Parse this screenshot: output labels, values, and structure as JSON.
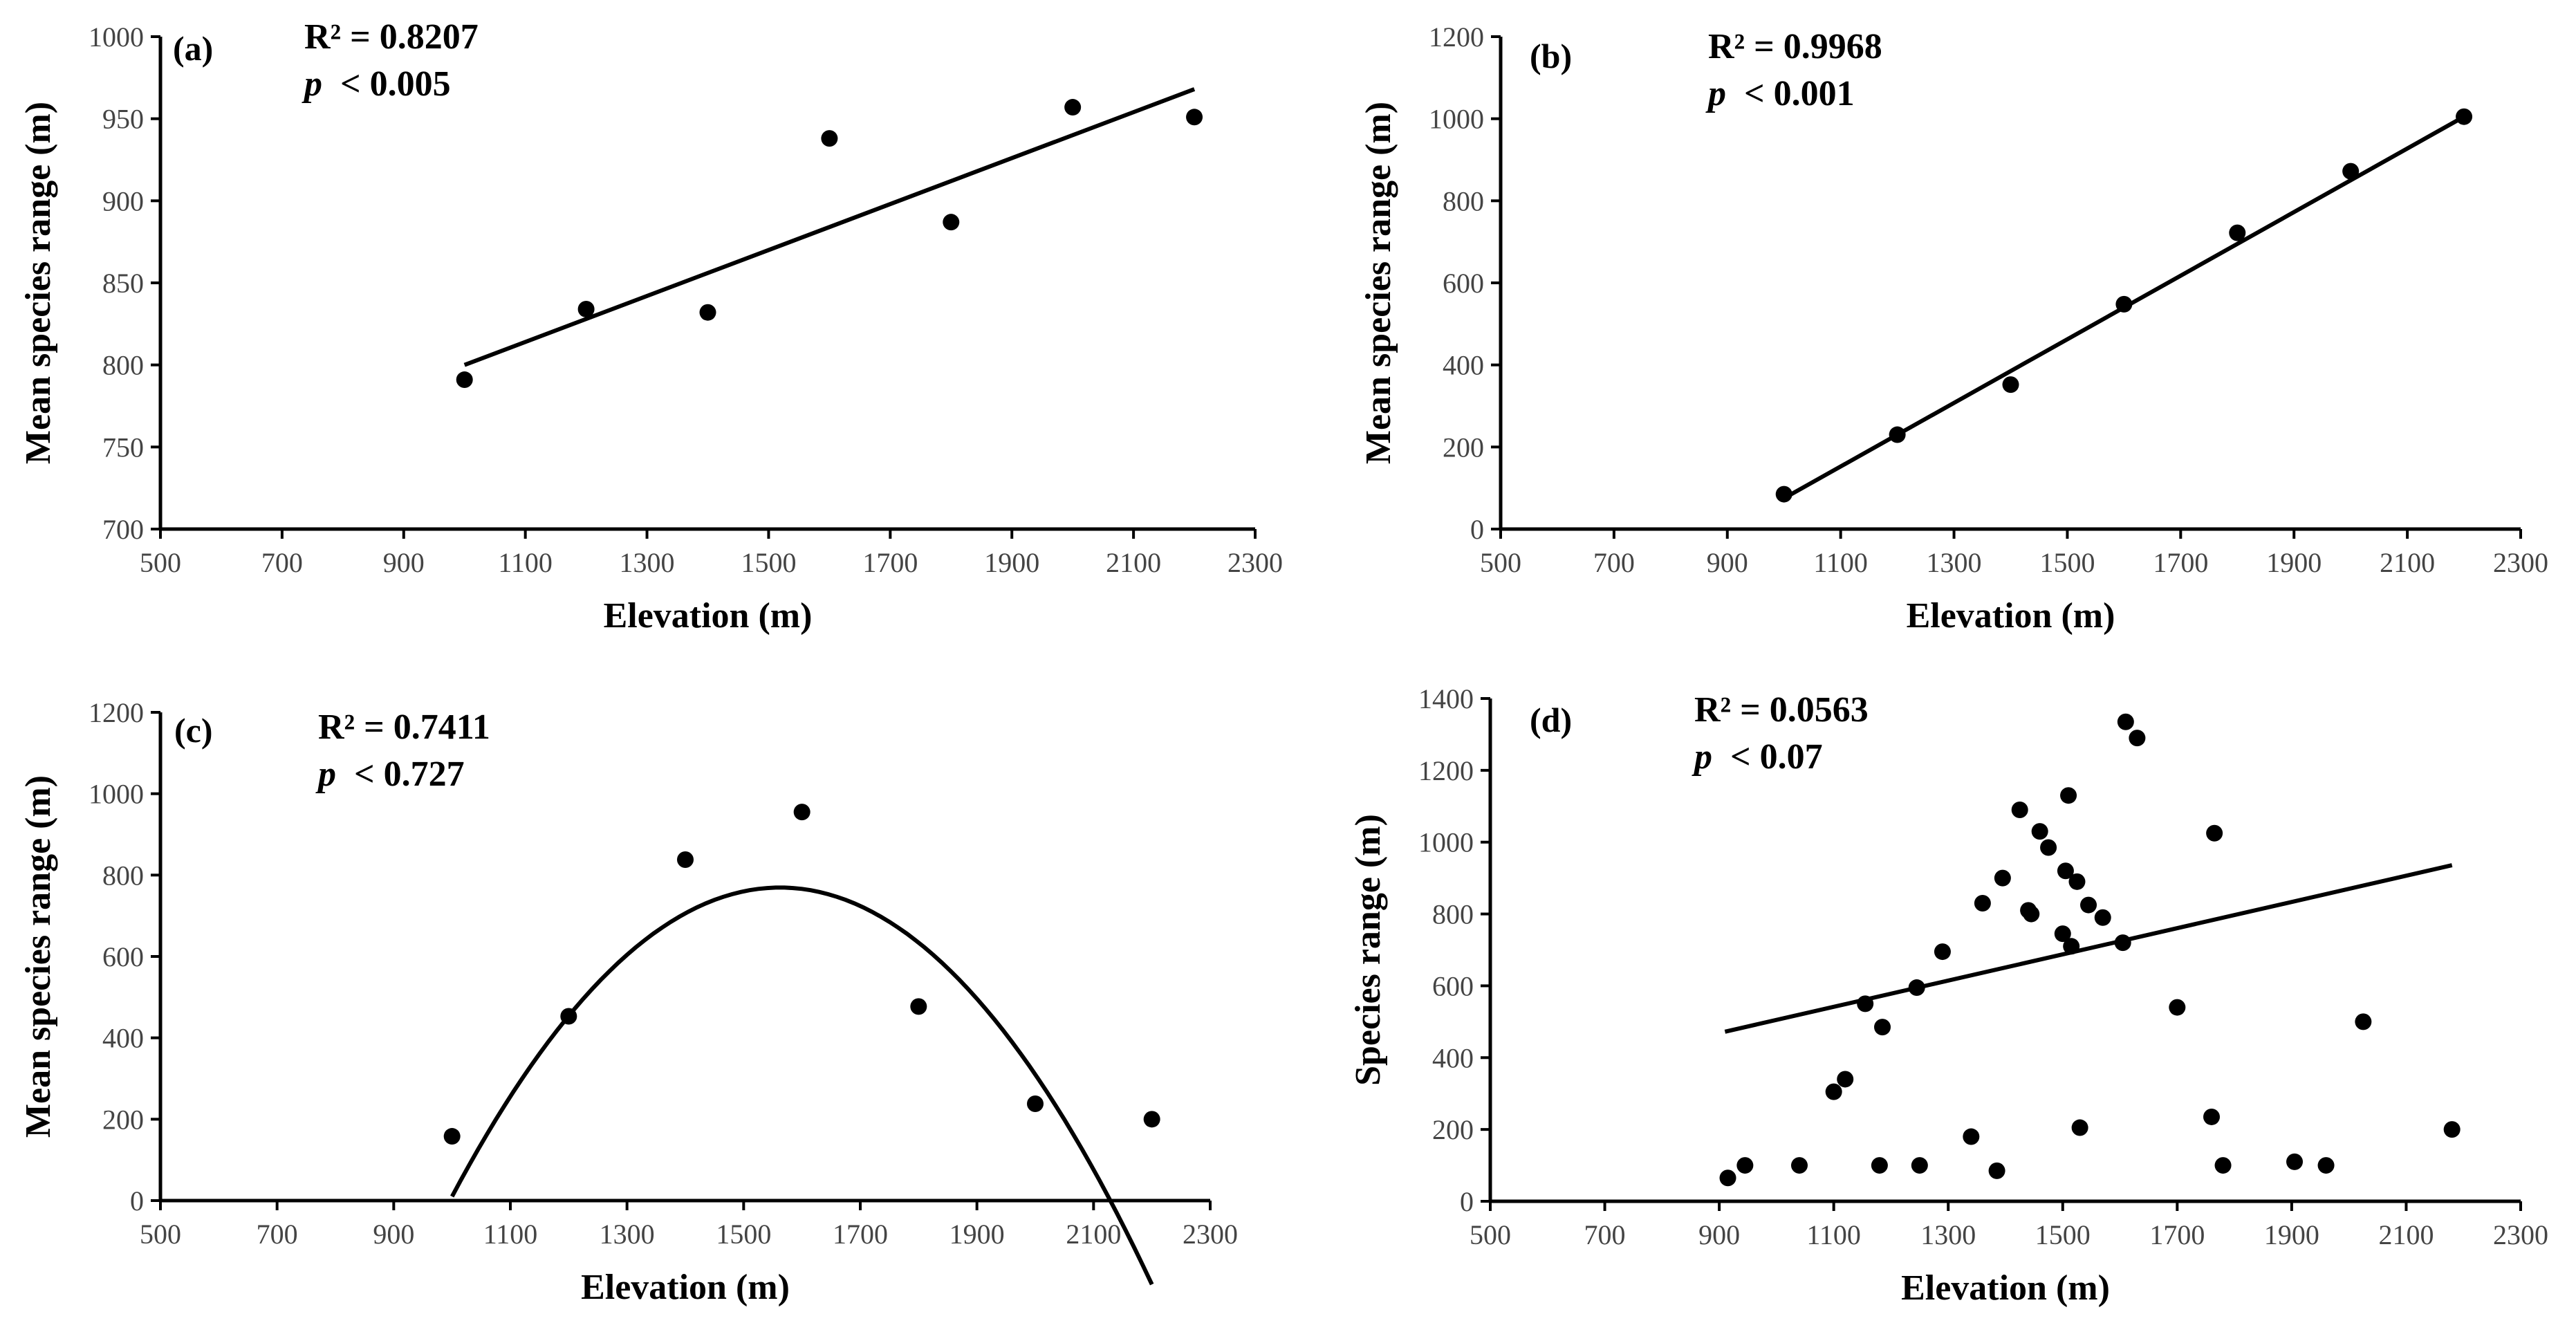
{
  "figure": {
    "description": "Four scatter panels of species range vs. elevation"
  },
  "chart_data": [
    {
      "type": "scatter",
      "panel_label": "(a)",
      "r2_text": "R² = 0.8207",
      "p_symbol": "p",
      "p_text": "< 0.005",
      "xlabel": "Elevation (m)",
      "ylabel": "Mean species range (m)",
      "xlim": [
        500,
        2300
      ],
      "ylim": [
        700,
        1000
      ],
      "xticks": [
        500,
        700,
        900,
        1100,
        1300,
        1500,
        1700,
        1900,
        2100,
        2300
      ],
      "yticks": [
        700,
        750,
        800,
        850,
        900,
        950,
        1000
      ],
      "points": [
        [
          1000,
          791
        ],
        [
          1200,
          834
        ],
        [
          1400,
          832
        ],
        [
          1600,
          938
        ],
        [
          1800,
          887
        ],
        [
          2000,
          957
        ],
        [
          2200,
          951
        ]
      ],
      "fit": {
        "kind": "linear",
        "x_range": [
          1000,
          2200
        ],
        "coeffs": [
          660,
          0.14
        ]
      }
    },
    {
      "type": "scatter",
      "panel_label": "(b)",
      "r2_text": "R² = 0.9968",
      "p_symbol": "p",
      "p_text": "< 0.001",
      "xlabel": "Elevation (m)",
      "ylabel": "Mean species range (m)",
      "xlim": [
        500,
        2300
      ],
      "ylim": [
        0,
        1200
      ],
      "xticks": [
        500,
        700,
        900,
        1100,
        1300,
        1500,
        1700,
        1900,
        2100,
        2300
      ],
      "yticks": [
        0,
        200,
        400,
        600,
        800,
        1000,
        1200
      ],
      "points": [
        [
          1000,
          85
        ],
        [
          1200,
          230
        ],
        [
          1400,
          352
        ],
        [
          1600,
          548
        ],
        [
          1800,
          722
        ],
        [
          2000,
          872
        ],
        [
          2200,
          1005
        ]
      ],
      "fit": {
        "kind": "linear",
        "x_range": [
          1000,
          2200
        ],
        "coeffs": [
          -700,
          0.775
        ]
      }
    },
    {
      "type": "scatter",
      "panel_label": "(c)",
      "r2_text": "R² = 0.7411",
      "p_symbol": "p",
      "p_text": "< 0.727",
      "xlabel": "Elevation (m)",
      "ylabel": "Mean species range (m)",
      "xlim": [
        500,
        2300
      ],
      "ylim": [
        0,
        1200
      ],
      "xticks": [
        500,
        700,
        900,
        1100,
        1300,
        1500,
        1700,
        1900,
        2100,
        2300
      ],
      "yticks": [
        0,
        200,
        400,
        600,
        800,
        1000,
        1200
      ],
      "points": [
        [
          1000,
          158
        ],
        [
          1200,
          453
        ],
        [
          1400,
          838
        ],
        [
          1600,
          955
        ],
        [
          1800,
          477
        ],
        [
          2000,
          238
        ],
        [
          2200,
          200
        ]
      ],
      "fit": {
        "kind": "quadratic",
        "x_range": [
          1000,
          2200
        ],
        "coeffs": [
          -5090,
          7.5,
          -0.0024
        ]
      }
    },
    {
      "type": "scatter",
      "panel_label": "(d)",
      "r2_text": "R² = 0.0563",
      "p_symbol": "p",
      "p_text": "< 0.07",
      "xlabel": "Elevation (m)",
      "ylabel": "Species range (m)",
      "xlim": [
        500,
        2300
      ],
      "ylim": [
        0,
        1400
      ],
      "xticks": [
        500,
        700,
        900,
        1100,
        1300,
        1500,
        1700,
        1900,
        2100,
        2300
      ],
      "yticks": [
        0,
        200,
        400,
        600,
        800,
        1000,
        1200,
        1400
      ],
      "points": [
        [
          915,
          65
        ],
        [
          945,
          100
        ],
        [
          1040,
          100
        ],
        [
          1100,
          305
        ],
        [
          1120,
          340
        ],
        [
          1155,
          550
        ],
        [
          1180,
          100
        ],
        [
          1185,
          485
        ],
        [
          1245,
          595
        ],
        [
          1250,
          100
        ],
        [
          1290,
          695
        ],
        [
          1340,
          180
        ],
        [
          1360,
          830
        ],
        [
          1385,
          85
        ],
        [
          1395,
          900
        ],
        [
          1425,
          1090
        ],
        [
          1440,
          810
        ],
        [
          1445,
          800
        ],
        [
          1460,
          1030
        ],
        [
          1475,
          985
        ],
        [
          1500,
          745
        ],
        [
          1505,
          920
        ],
        [
          1510,
          1130
        ],
        [
          1515,
          710
        ],
        [
          1525,
          890
        ],
        [
          1530,
          205
        ],
        [
          1545,
          825
        ],
        [
          1570,
          790
        ],
        [
          1605,
          720
        ],
        [
          1610,
          1335
        ],
        [
          1630,
          1290
        ],
        [
          1700,
          540
        ],
        [
          1760,
          235
        ],
        [
          1765,
          1025
        ],
        [
          1780,
          100
        ],
        [
          1905,
          110
        ],
        [
          1960,
          100
        ],
        [
          2025,
          500
        ],
        [
          2180,
          200
        ]
      ],
      "fit": {
        "kind": "linear",
        "x_range": [
          910,
          2180
        ],
        "coeffs": [
          140,
          0.365
        ]
      }
    }
  ]
}
